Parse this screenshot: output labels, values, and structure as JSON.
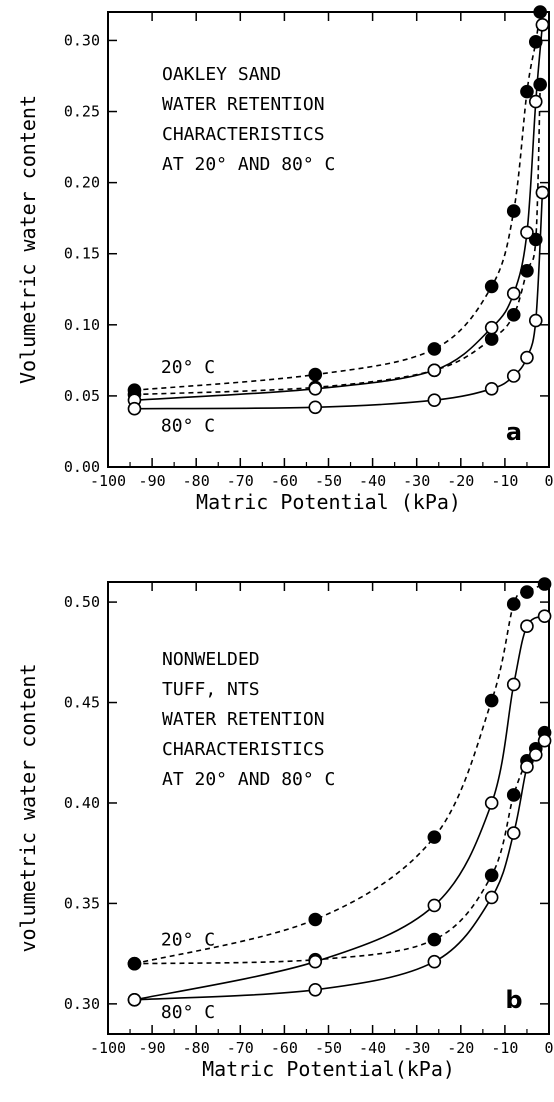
{
  "chart_data": [
    {
      "type": "scatter",
      "panel_label": "a",
      "annotation_lines": [
        "OAKLEY SAND",
        "WATER RETENTION",
        "CHARACTERISTICS",
        "AT 20° AND 80° C"
      ],
      "xlabel": "Matric Potential (kPa)",
      "ylabel": "Volumetric water content",
      "xlim": [
        -100,
        0
      ],
      "ylim": [
        0,
        0.32
      ],
      "xticks": [
        -100,
        -90,
        -80,
        -70,
        -60,
        -50,
        -40,
        -30,
        -20,
        -10,
        0
      ],
      "xtick_labels": [
        "-100",
        "-90",
        "-80",
        "-70",
        "-60",
        "-50",
        "-40",
        "-30",
        "-20",
        "-10",
        "0"
      ],
      "yticks": [
        0,
        0.05,
        0.1,
        0.15,
        0.2,
        0.25,
        0.3
      ],
      "ytick_labels": [
        "0.00",
        "0.05",
        "0.10",
        "0.15",
        "0.20",
        "0.25",
        "0.30"
      ],
      "curve_labels": [
        {
          "text": "20° C",
          "x": -88,
          "y": 0.066
        },
        {
          "text": "80° C",
          "x": -88,
          "y": 0.025
        }
      ],
      "series": [
        {
          "marker": "filled",
          "line": "dashed",
          "x": [
            -94,
            -53,
            -26,
            -13,
            -8,
            -5,
            -3,
            -2
          ],
          "y": [
            0.054,
            0.065,
            0.083,
            0.127,
            0.18,
            0.264,
            0.299,
            0.32
          ]
        },
        {
          "marker": "filled",
          "line": "dashed",
          "x": [
            -94,
            -53,
            -26,
            -13,
            -8,
            -5,
            -3,
            -2
          ],
          "y": [
            0.051,
            0.056,
            0.068,
            0.09,
            0.107,
            0.138,
            0.16,
            0.269
          ]
        },
        {
          "marker": "open",
          "line": "solid",
          "x": [
            -94,
            -53,
            -26,
            -13,
            -8,
            -5,
            -3,
            -1.5
          ],
          "y": [
            0.047,
            0.055,
            0.068,
            0.098,
            0.122,
            0.165,
            0.257,
            0.311
          ]
        },
        {
          "marker": "open",
          "line": "solid",
          "x": [
            -94,
            -53,
            -26,
            -13,
            -8,
            -5,
            -3,
            -1.5
          ],
          "y": [
            0.041,
            0.042,
            0.047,
            0.055,
            0.064,
            0.077,
            0.103,
            0.193
          ]
        }
      ]
    },
    {
      "type": "scatter",
      "panel_label": "b",
      "annotation_lines": [
        "NONWELDED",
        "TUFF, NTS",
        "WATER RETENTION",
        "CHARACTERISTICS",
        "AT 20° AND 80° C"
      ],
      "xlabel": "Matric Potential(kPa)",
      "ylabel": "volumetric water content",
      "xlim": [
        -100,
        0
      ],
      "ylim": [
        0.285,
        0.51
      ],
      "xticks": [
        -100,
        -90,
        -80,
        -70,
        -60,
        -50,
        -40,
        -30,
        -20,
        -10,
        0
      ],
      "xtick_labels": [
        "-100",
        "-90",
        "-80",
        "-70",
        "-60",
        "-50",
        "-40",
        "-30",
        "-20",
        "-10",
        "0"
      ],
      "yticks": [
        0.3,
        0.35,
        0.4,
        0.45,
        0.5
      ],
      "ytick_labels": [
        "0.30",
        "0.35",
        "0.40",
        "0.45",
        "0.50"
      ],
      "curve_labels": [
        {
          "text": "20° C",
          "x": -88,
          "y": 0.329
        },
        {
          "text": "80° C",
          "x": -88,
          "y": 0.293
        }
      ],
      "series": [
        {
          "marker": "filled",
          "line": "dashed",
          "x": [
            -94,
            -53,
            -26,
            -13,
            -8,
            -5,
            -1
          ],
          "y": [
            0.32,
            0.342,
            0.383,
            0.451,
            0.499,
            0.505,
            0.509
          ]
        },
        {
          "marker": "filled",
          "line": "dashed",
          "x": [
            -94,
            -53,
            -26,
            -13,
            -8,
            -5,
            -3,
            -1
          ],
          "y": [
            0.32,
            0.322,
            0.332,
            0.364,
            0.404,
            0.421,
            0.427,
            0.435
          ]
        },
        {
          "marker": "open",
          "line": "solid",
          "x": [
            -94,
            -53,
            -26,
            -13,
            -8,
            -5,
            -1
          ],
          "y": [
            0.302,
            0.321,
            0.349,
            0.4,
            0.459,
            0.488,
            0.493
          ]
        },
        {
          "marker": "open",
          "line": "solid",
          "x": [
            -94,
            -53,
            -26,
            -13,
            -8,
            -5,
            -3,
            -1
          ],
          "y": [
            0.302,
            0.307,
            0.321,
            0.353,
            0.385,
            0.418,
            0.424,
            0.431
          ]
        }
      ]
    }
  ]
}
